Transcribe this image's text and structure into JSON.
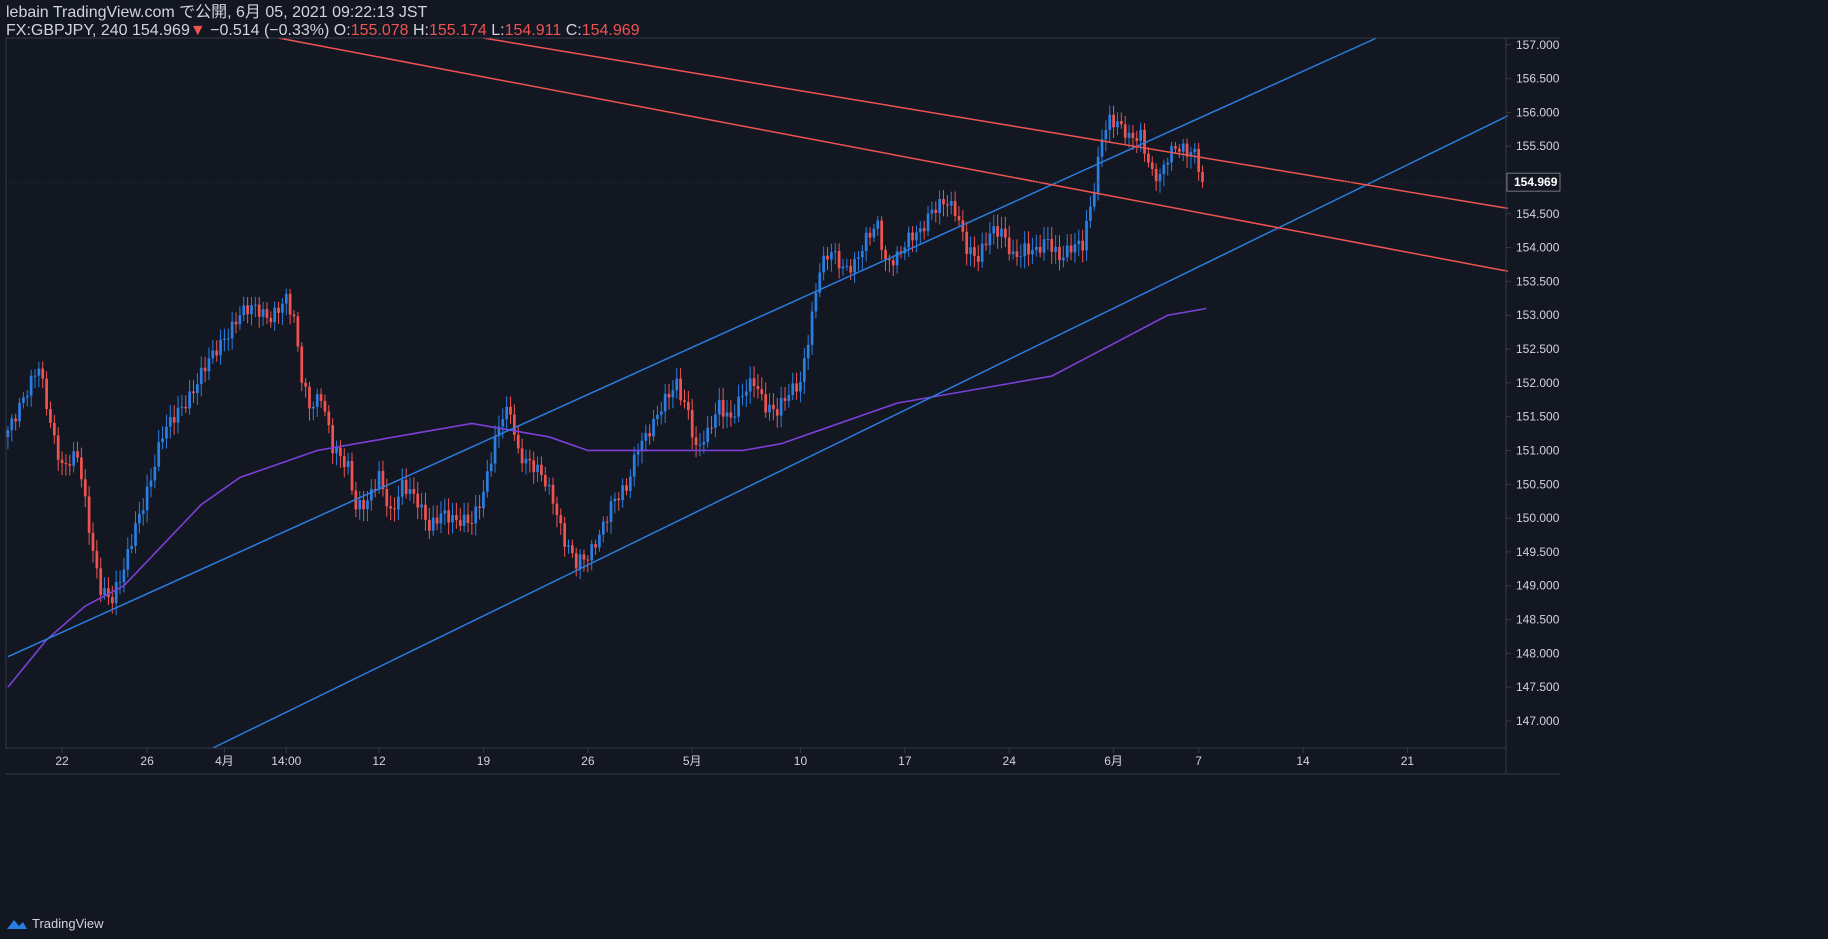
{
  "header": {
    "line1": "lebain TradingView.com で公開, 6月 05, 2021 09:22:13 JST",
    "symbol": "FX:GBPJPY, 240",
    "last": "154.969",
    "arrow": "▼",
    "change": "−0.514 (−0.33%)",
    "o_label": "O:",
    "o_val": "155.078",
    "h_label": "H:",
    "h_val": "155.174",
    "l_label": "L:",
    "l_val": "154.911",
    "c_label": "C:",
    "c_val": "154.969"
  },
  "footer": {
    "brand": "TradingView",
    "logo_icon": "tradingview-logo-icon"
  },
  "colors": {
    "background": "#131722",
    "up": "#2a7de1",
    "down": "#ef5350",
    "ma": "#7b40d8",
    "trend_blue": "#2a7de1",
    "trend_red": "#ef5350",
    "grid_border": "#363a45",
    "text": "#d1d4dc",
    "price_tag_bg": "#131722"
  },
  "chart_data": {
    "type": "candlestick",
    "ylim": [
      146.6,
      157.1
    ],
    "y_ticks": [
      "157.000",
      "156.500",
      "156.000",
      "155.500",
      "155.000",
      "154.500",
      "154.000",
      "153.500",
      "153.000",
      "152.500",
      "152.000",
      "151.500",
      "151.000",
      "150.500",
      "150.000",
      "149.500",
      "149.000",
      "148.500",
      "148.000",
      "147.500",
      "147.000"
    ],
    "x_ticks": [
      {
        "label": "22",
        "bar": 14
      },
      {
        "label": "26",
        "bar": 36
      },
      {
        "label": "4月",
        "bar": 56
      },
      {
        "label": "14:00",
        "bar": 72
      },
      {
        "label": "12",
        "bar": 96
      },
      {
        "label": "19",
        "bar": 123
      },
      {
        "label": "26",
        "bar": 150
      },
      {
        "label": "5月",
        "bar": 177
      },
      {
        "label": "10",
        "bar": 205
      },
      {
        "label": "17",
        "bar": 232
      },
      {
        "label": "24",
        "bar": 259
      },
      {
        "label": "6月",
        "bar": 286
      },
      {
        "label": "7",
        "bar": 308
      },
      {
        "label": "14",
        "bar": 335
      },
      {
        "label": "21",
        "bar": 362
      }
    ],
    "last_price": "154.969",
    "last_value": 154.969,
    "series": [
      {
        "name": "GBPJPY",
        "anchors": [
          [
            0,
            151.3
          ],
          [
            3,
            151.7
          ],
          [
            8,
            152.2
          ],
          [
            11,
            151.4
          ],
          [
            14,
            150.8
          ],
          [
            18,
            150.9
          ],
          [
            22,
            149.5
          ],
          [
            24,
            149.0
          ],
          [
            27,
            148.8
          ],
          [
            30,
            149.2
          ],
          [
            33,
            149.9
          ],
          [
            37,
            150.6
          ],
          [
            40,
            151.2
          ],
          [
            44,
            151.6
          ],
          [
            48,
            151.9
          ],
          [
            52,
            152.3
          ],
          [
            56,
            152.7
          ],
          [
            60,
            153.0
          ],
          [
            64,
            153.1
          ],
          [
            68,
            153.0
          ],
          [
            72,
            153.2
          ],
          [
            74,
            152.9
          ],
          [
            76,
            152.1
          ],
          [
            78,
            151.7
          ],
          [
            81,
            151.8
          ],
          [
            84,
            151.0
          ],
          [
            88,
            150.8
          ],
          [
            90,
            150.2
          ],
          [
            93,
            150.2
          ],
          [
            96,
            150.6
          ],
          [
            99,
            150.1
          ],
          [
            102,
            150.5
          ],
          [
            106,
            150.2
          ],
          [
            109,
            149.9
          ],
          [
            112,
            150.1
          ],
          [
            116,
            149.9
          ],
          [
            120,
            150.0
          ],
          [
            123,
            150.4
          ],
          [
            126,
            151.1
          ],
          [
            128,
            151.5
          ],
          [
            130,
            151.6
          ],
          [
            132,
            151.0
          ],
          [
            135,
            150.8
          ],
          [
            138,
            150.6
          ],
          [
            141,
            150.3
          ],
          [
            144,
            149.7
          ],
          [
            147,
            149.3
          ],
          [
            150,
            149.4
          ],
          [
            153,
            149.8
          ],
          [
            156,
            150.2
          ],
          [
            160,
            150.4
          ],
          [
            163,
            151.1
          ],
          [
            167,
            151.4
          ],
          [
            170,
            151.7
          ],
          [
            173,
            152.0
          ],
          [
            176,
            151.6
          ],
          [
            178,
            151.0
          ],
          [
            181,
            151.2
          ],
          [
            184,
            151.7
          ],
          [
            187,
            151.5
          ],
          [
            190,
            151.8
          ],
          [
            193,
            152.0
          ],
          [
            196,
            151.7
          ],
          [
            199,
            151.6
          ],
          [
            202,
            151.8
          ],
          [
            205,
            152.0
          ],
          [
            207,
            152.7
          ],
          [
            210,
            153.7
          ],
          [
            213,
            153.9
          ],
          [
            216,
            153.7
          ],
          [
            219,
            153.8
          ],
          [
            222,
            154.1
          ],
          [
            225,
            154.3
          ],
          [
            227,
            153.8
          ],
          [
            230,
            153.9
          ],
          [
            233,
            154.1
          ],
          [
            236,
            154.2
          ],
          [
            239,
            154.6
          ],
          [
            242,
            154.7
          ],
          [
            245,
            154.5
          ],
          [
            248,
            154.0
          ],
          [
            251,
            153.9
          ],
          [
            254,
            154.2
          ],
          [
            257,
            154.2
          ],
          [
            260,
            153.9
          ],
          [
            263,
            154.0
          ],
          [
            266,
            153.9
          ],
          [
            269,
            154.1
          ],
          [
            272,
            153.9
          ],
          [
            275,
            154.0
          ],
          [
            278,
            154.0
          ],
          [
            281,
            154.9
          ],
          [
            283,
            155.7
          ],
          [
            285,
            155.9
          ],
          [
            287,
            155.8
          ],
          [
            290,
            155.6
          ],
          [
            293,
            155.7
          ],
          [
            296,
            155.1
          ],
          [
            298,
            155.0
          ],
          [
            300,
            155.3
          ],
          [
            302,
            155.5
          ],
          [
            304,
            155.5
          ],
          [
            307,
            155.4
          ],
          [
            309,
            154.97
          ]
        ]
      },
      {
        "name": "MA",
        "points": [
          [
            0,
            147.5
          ],
          [
            10,
            148.2
          ],
          [
            20,
            148.7
          ],
          [
            30,
            149.0
          ],
          [
            40,
            149.6
          ],
          [
            50,
            150.2
          ],
          [
            60,
            150.6
          ],
          [
            70,
            150.8
          ],
          [
            80,
            151.0
          ],
          [
            90,
            151.1
          ],
          [
            100,
            151.2
          ],
          [
            110,
            151.3
          ],
          [
            120,
            151.4
          ],
          [
            130,
            151.3
          ],
          [
            140,
            151.2
          ],
          [
            150,
            151.0
          ],
          [
            160,
            151.0
          ],
          [
            170,
            151.0
          ],
          [
            180,
            151.0
          ],
          [
            190,
            151.0
          ],
          [
            200,
            151.1
          ],
          [
            210,
            151.3
          ],
          [
            220,
            151.5
          ],
          [
            230,
            151.7
          ],
          [
            240,
            151.8
          ],
          [
            250,
            151.9
          ],
          [
            260,
            152.0
          ],
          [
            270,
            152.1
          ],
          [
            280,
            152.4
          ],
          [
            290,
            152.7
          ],
          [
            300,
            153.0
          ],
          [
            310,
            153.1
          ]
        ]
      }
    ],
    "trendlines": [
      {
        "color": "blue",
        "from": [
          0,
          147.95
        ],
        "to": [
          354,
          157.1
        ]
      },
      {
        "color": "blue",
        "from": [
          53,
          146.6
        ],
        "to": [
          388,
          155.95
        ]
      },
      {
        "color": "red",
        "from": [
          123,
          157.1
        ],
        "to": [
          388,
          154.58
        ]
      },
      {
        "color": "red",
        "from": [
          70,
          157.1
        ],
        "to": [
          388,
          153.65
        ]
      }
    ],
    "x_bars_visible": 388
  }
}
